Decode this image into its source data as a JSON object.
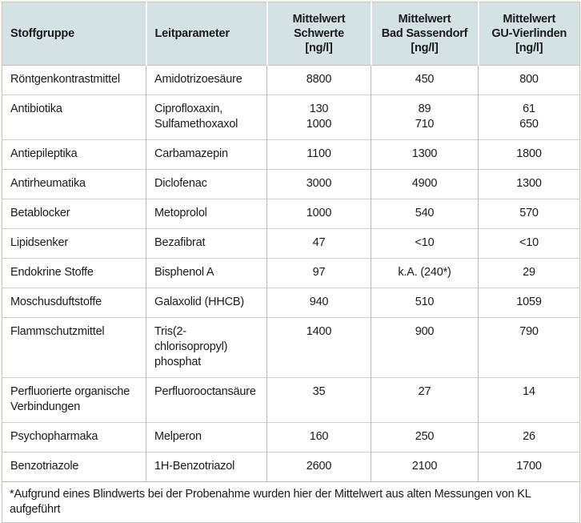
{
  "colors": {
    "header_bg": "#d5e2e4",
    "grid_vertical": "#b9b9b9",
    "grid_horizontal": "#d0d0d0",
    "outer_border": "#c6c6c0",
    "page_bg": "#f8f8f3",
    "body_bg": "#ffffff",
    "text": "#1a1a1a"
  },
  "table": {
    "columns": [
      {
        "label": "Stoffgruppe"
      },
      {
        "label": "Leitparameter"
      },
      {
        "label": "Mittelwert\nSchwerte\n[ng/l]"
      },
      {
        "label": "Mittelwert\nBad Sassendorf\n[ng/l]"
      },
      {
        "label": "Mittelwert\nGU-Vierlinden\n[ng/l]"
      }
    ],
    "rows": [
      {
        "stoffgruppe": "Röntgenkontrastmittel",
        "leitparameter": "Amidotrizoesäure",
        "schwerte": "8800",
        "bad_sassendorf": "450",
        "gu_vierlinden": "800"
      },
      {
        "stoffgruppe": "Antibiotika",
        "leitparameter": "Ciprofloxaxin,\nSulfamethoxaxol",
        "schwerte": "130\n1000",
        "bad_sassendorf": "89\n710",
        "gu_vierlinden": "61\n650"
      },
      {
        "stoffgruppe": "Antiepileptika",
        "leitparameter": "Carbamazepin",
        "schwerte": "1100",
        "bad_sassendorf": "1300",
        "gu_vierlinden": "1800"
      },
      {
        "stoffgruppe": "Antirheumatika",
        "leitparameter": "Diclofenac",
        "schwerte": "3000",
        "bad_sassendorf": "4900",
        "gu_vierlinden": "1300"
      },
      {
        "stoffgruppe": "Betablocker",
        "leitparameter": "Metoprolol",
        "schwerte": "1000",
        "bad_sassendorf": "540",
        "gu_vierlinden": "570"
      },
      {
        "stoffgruppe": "Lipidsenker",
        "leitparameter": "Bezafibrat",
        "schwerte": "47",
        "bad_sassendorf": "<10",
        "gu_vierlinden": "<10"
      },
      {
        "stoffgruppe": "Endokrine Stoffe",
        "leitparameter": "Bisphenol A",
        "schwerte": "97",
        "bad_sassendorf": "k.A. (240*)",
        "gu_vierlinden": "29"
      },
      {
        "stoffgruppe": "Moschusduftstoffe",
        "leitparameter": "Galaxolid (HHCB)",
        "schwerte": "940",
        "bad_sassendorf": "510",
        "gu_vierlinden": "1059"
      },
      {
        "stoffgruppe": "Flammschutzmittel",
        "leitparameter": "Tris(2-chlorisopropyl)\nphosphat",
        "schwerte": "1400",
        "bad_sassendorf": "900",
        "gu_vierlinden": "790"
      },
      {
        "stoffgruppe": "Perfluorierte organische\nVerbindungen",
        "leitparameter": "Perfluorooctansäure",
        "schwerte": "35",
        "bad_sassendorf": "27",
        "gu_vierlinden": "14"
      },
      {
        "stoffgruppe": "Psychopharmaka",
        "leitparameter": "Melperon",
        "schwerte": "160",
        "bad_sassendorf": "250",
        "gu_vierlinden": "26"
      },
      {
        "stoffgruppe": "Benzotriazole",
        "leitparameter": "1H-Benzotriazol",
        "schwerte": "2600",
        "bad_sassendorf": "2100",
        "gu_vierlinden": "1700"
      }
    ],
    "footnote": "*Aufgrund eines Blindwerts bei der Probenahme wurden hier der Mittelwert aus alten Messungen von KL aufgeführt"
  }
}
